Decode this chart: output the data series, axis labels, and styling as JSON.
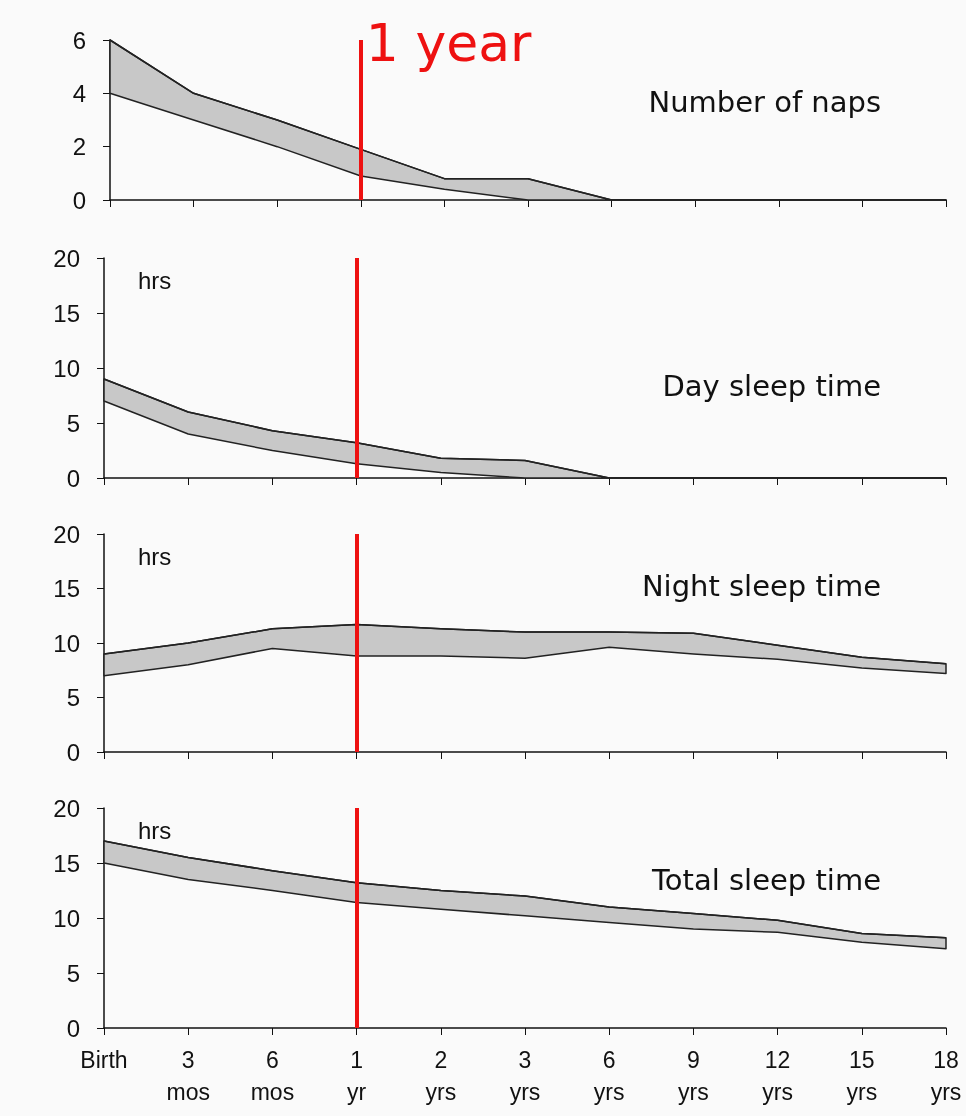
{
  "chart_data": [
    {
      "type": "line",
      "title": "Number of naps",
      "categories": [
        "Birth",
        "3 mos",
        "6 mos",
        "1 yr",
        "2 yrs",
        "3 yrs",
        "6 yrs",
        "9 yrs",
        "12 yrs",
        "15 yrs",
        "18 yrs"
      ],
      "ylim": [
        0,
        6
      ],
      "yticks": [
        0,
        2,
        4,
        6
      ],
      "grid": false,
      "tick_labels": "y",
      "series": [
        {
          "color": "#222222",
          "values": [
            6,
            4,
            3,
            1.9,
            0.8,
            0.8,
            0,
            0,
            0,
            0,
            0
          ],
          "upper": [
            6,
            4,
            3,
            1.9,
            0.8,
            0.8,
            0,
            0,
            0,
            0,
            0
          ],
          "lower": [
            4,
            3,
            2,
            0.9,
            0.4,
            0,
            0,
            0,
            0,
            0,
            0
          ]
        }
      ],
      "ref_lines": [
        {
          "axis": "x",
          "value": "1 yr",
          "label": "1 year",
          "color": "#ee1111"
        }
      ]
    },
    {
      "type": "line",
      "title": "Day sleep time",
      "ylabel": "hrs",
      "categories": [
        "Birth",
        "3 mos",
        "6 mos",
        "1 yr",
        "2 yrs",
        "3 yrs",
        "6 yrs",
        "9 yrs",
        "12 yrs",
        "15 yrs",
        "18 yrs"
      ],
      "ylim": [
        0,
        20
      ],
      "yticks": [
        0,
        5,
        10,
        15,
        20
      ],
      "grid": false,
      "tick_labels": "y",
      "series": [
        {
          "color": "#222222",
          "values": [
            9,
            6,
            4.3,
            3.2,
            1.8,
            1.6,
            0,
            0,
            0,
            0,
            0
          ],
          "upper": [
            9,
            6,
            4.3,
            3.2,
            1.8,
            1.6,
            0,
            0,
            0,
            0,
            0
          ],
          "lower": [
            7,
            4,
            2.5,
            1.3,
            0.5,
            0,
            0,
            0,
            0,
            0,
            0
          ]
        }
      ],
      "ref_lines": [
        {
          "axis": "x",
          "value": "1 yr",
          "color": "#ee1111"
        }
      ]
    },
    {
      "type": "line",
      "title": "Night sleep time",
      "ylabel": "hrs",
      "categories": [
        "Birth",
        "3 mos",
        "6 mos",
        "1 yr",
        "2 yrs",
        "3 yrs",
        "6 yrs",
        "9 yrs",
        "12 yrs",
        "15 yrs",
        "18 yrs"
      ],
      "ylim": [
        0,
        20
      ],
      "yticks": [
        0,
        5,
        10,
        15,
        20
      ],
      "grid": false,
      "tick_labels": "y",
      "series": [
        {
          "color": "#222222",
          "values": [
            9,
            10,
            11.3,
            11.7,
            11.3,
            11,
            11,
            10.9,
            9.8,
            8.7,
            8.1
          ],
          "upper": [
            9,
            10,
            11.3,
            11.7,
            11.3,
            11,
            11,
            10.9,
            9.8,
            8.7,
            8.1
          ],
          "lower": [
            7,
            8,
            9.5,
            8.8,
            8.8,
            8.6,
            9.6,
            9,
            8.5,
            7.7,
            7.2
          ]
        }
      ],
      "ref_lines": [
        {
          "axis": "x",
          "value": "1 yr",
          "color": "#ee1111"
        }
      ]
    },
    {
      "type": "line",
      "title": "Total sleep time",
      "ylabel": "hrs",
      "categories": [
        "Birth",
        "3 mos",
        "6 mos",
        "1 yr",
        "2 yrs",
        "3 yrs",
        "6 yrs",
        "9 yrs",
        "12 yrs",
        "15 yrs",
        "18 yrs"
      ],
      "ylim": [
        0,
        20
      ],
      "yticks": [
        0,
        5,
        10,
        15,
        20
      ],
      "grid": false,
      "series": [
        {
          "color": "#222222",
          "values": [
            17,
            15.5,
            14.3,
            13.2,
            12.5,
            12,
            11,
            10.4,
            9.8,
            8.6,
            8.2
          ],
          "upper": [
            17,
            15.5,
            14.3,
            13.2,
            12.5,
            12,
            11,
            10.4,
            9.8,
            8.6,
            8.2
          ],
          "lower": [
            15,
            13.5,
            12.5,
            11.4,
            10.8,
            10.2,
            9.6,
            9,
            8.7,
            7.8,
            7.2
          ]
        }
      ],
      "ref_lines": [
        {
          "axis": "x",
          "value": "1 yr",
          "color": "#ee1111"
        }
      ]
    }
  ]
}
